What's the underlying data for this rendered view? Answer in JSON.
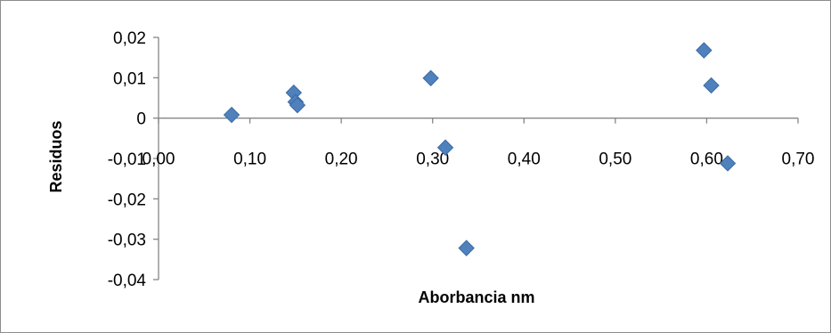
{
  "chart_data": {
    "type": "scatter",
    "title": "",
    "xlabel": "Aborbancia nm",
    "ylabel": "Residuos",
    "xlim": [
      0,
      0.7
    ],
    "ylim": [
      -0.04,
      0.02
    ],
    "x_ticks": [
      0,
      0.1,
      0.2,
      0.3,
      0.4,
      0.5,
      0.6,
      0.7
    ],
    "y_ticks": [
      0.02,
      0.01,
      0,
      -0.01,
      -0.02,
      -0.03,
      -0.04
    ],
    "x_tick_labels": [
      "0,00",
      "0,10",
      "0,20",
      "0,30",
      "0,40",
      "0,50",
      "0,60",
      "0,70"
    ],
    "y_tick_labels": [
      "0,02",
      "0,01",
      "0",
      "-0,01",
      "-0,02",
      "-0,03",
      "-0,04"
    ],
    "grid": false,
    "legend": "none",
    "marker_color": "#4f81bd",
    "marker_edge_color": "#3a6aa3",
    "series": [
      {
        "points": [
          {
            "x": 0.08,
            "y": 0.0008
          },
          {
            "x": 0.148,
            "y": 0.0063
          },
          {
            "x": 0.15,
            "y": 0.004
          },
          {
            "x": 0.152,
            "y": 0.0032
          },
          {
            "x": 0.298,
            "y": 0.0099
          },
          {
            "x": 0.314,
            "y": -0.0073
          },
          {
            "x": 0.337,
            "y": -0.0322
          },
          {
            "x": 0.597,
            "y": 0.0168
          },
          {
            "x": 0.605,
            "y": 0.0081
          },
          {
            "x": 0.623,
            "y": -0.0112
          }
        ]
      }
    ]
  }
}
